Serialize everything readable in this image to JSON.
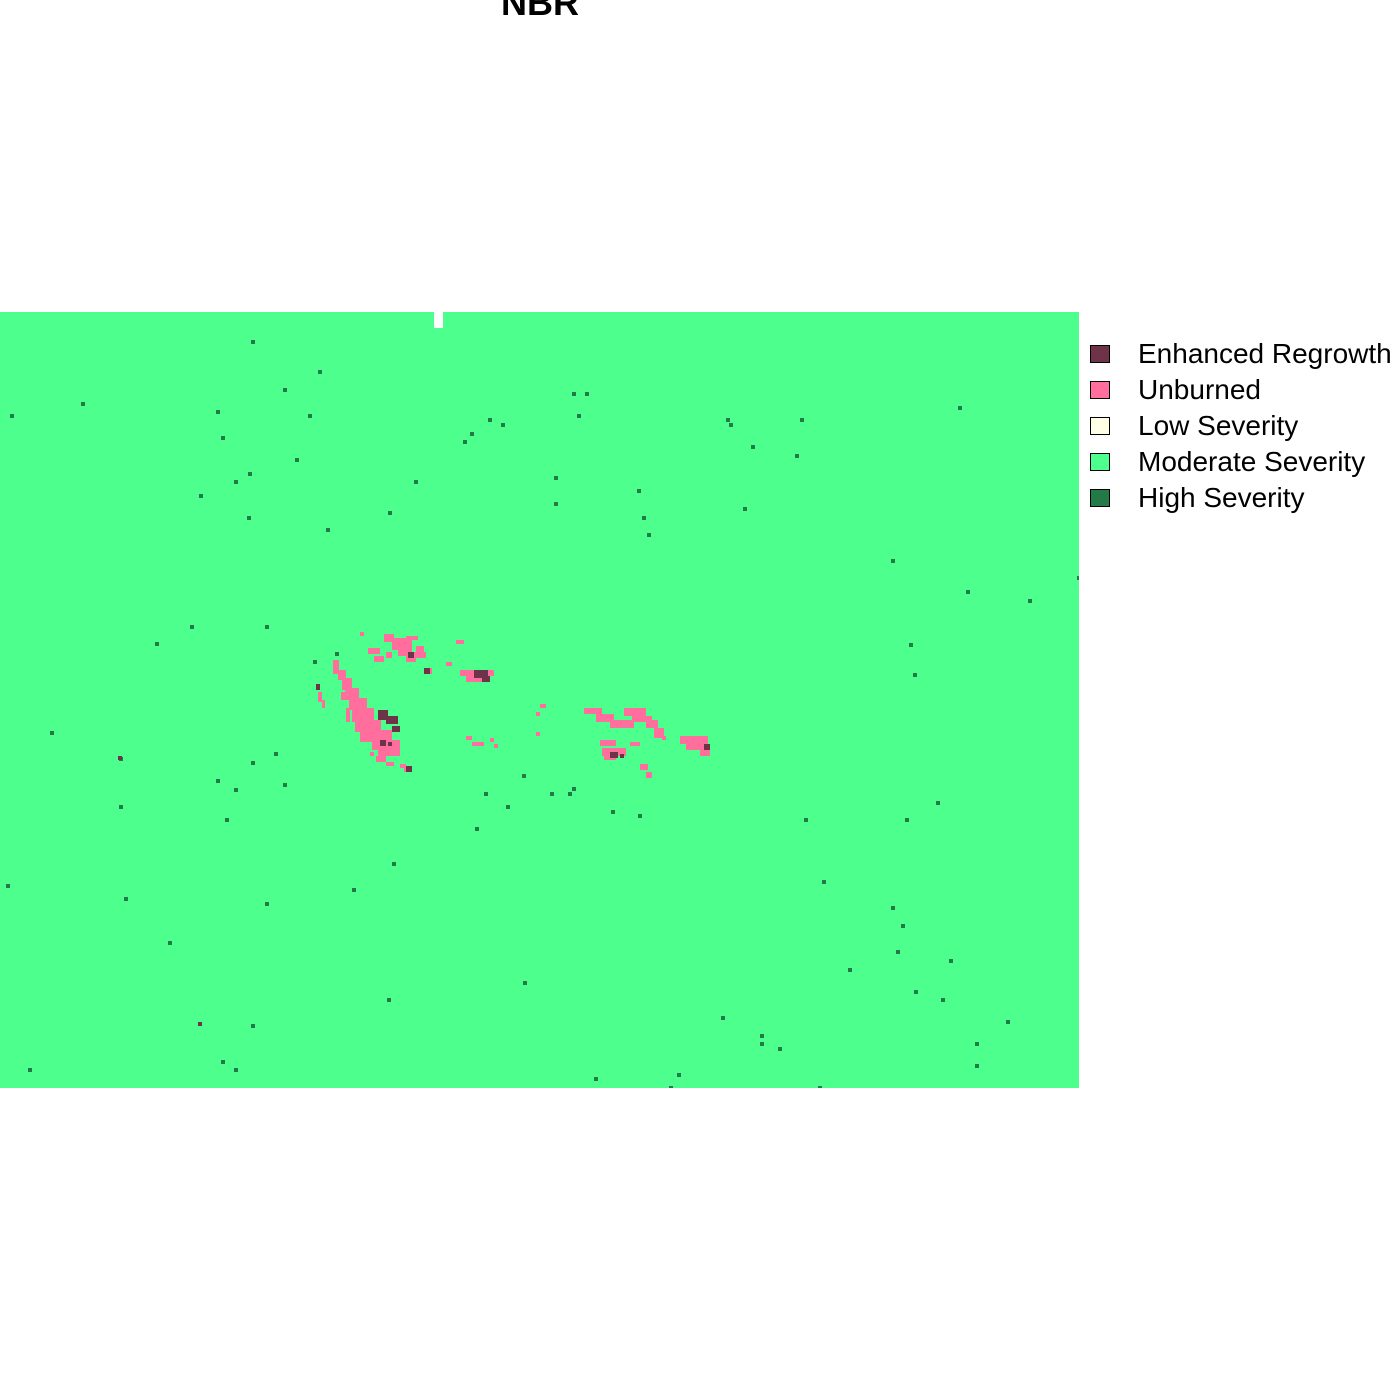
{
  "title": "NBR",
  "legend": [
    {
      "label": "Enhanced Regrowth",
      "color": "#6e3348"
    },
    {
      "label": "Unburned",
      "color": "#ff6e9c"
    },
    {
      "label": "Low Severity",
      "color": "#ffffe6"
    },
    {
      "label": "Moderate Severity",
      "color": "#4dff8c"
    },
    {
      "label": "High Severity",
      "color": "#237a49"
    }
  ]
}
